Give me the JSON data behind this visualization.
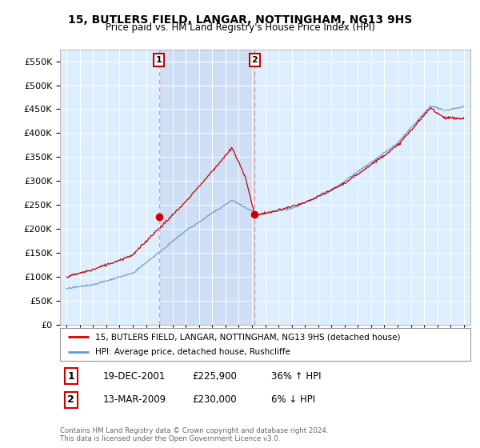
{
  "title": "15, BUTLERS FIELD, LANGAR, NOTTINGHAM, NG13 9HS",
  "subtitle": "Price paid vs. HM Land Registry's House Price Index (HPI)",
  "background_color": "#ffffff",
  "plot_bg_color": "#ddeeff",
  "plot_bg_color2": "#ccddf0",
  "shade_color": "#c8d8f0",
  "grid_color": "#ffffff",
  "ylim": [
    0,
    575000
  ],
  "yticks": [
    0,
    50000,
    100000,
    150000,
    200000,
    250000,
    300000,
    350000,
    400000,
    450000,
    500000,
    550000
  ],
  "xlim_start": 1994.5,
  "xlim_end": 2025.5,
  "legend_label_red": "15, BUTLERS FIELD, LANGAR, NOTTINGHAM, NG13 9HS (detached house)",
  "legend_label_blue": "HPI: Average price, detached house, Rushcliffe",
  "marker1_x": 2001.97,
  "marker1_y": 225900,
  "marker1_label": "1",
  "marker1_date": "19-DEC-2001",
  "marker1_price": "£225,900",
  "marker1_hpi": "36% ↑ HPI",
  "marker2_x": 2009.2,
  "marker2_y": 230000,
  "marker2_label": "2",
  "marker2_date": "13-MAR-2009",
  "marker2_price": "£230,000",
  "marker2_hpi": "6% ↓ HPI",
  "footer": "Contains HM Land Registry data © Crown copyright and database right 2024.\nThis data is licensed under the Open Government Licence v3.0.",
  "red_color": "#cc0000",
  "blue_color": "#6699cc",
  "dashed_color": "#ee9999"
}
